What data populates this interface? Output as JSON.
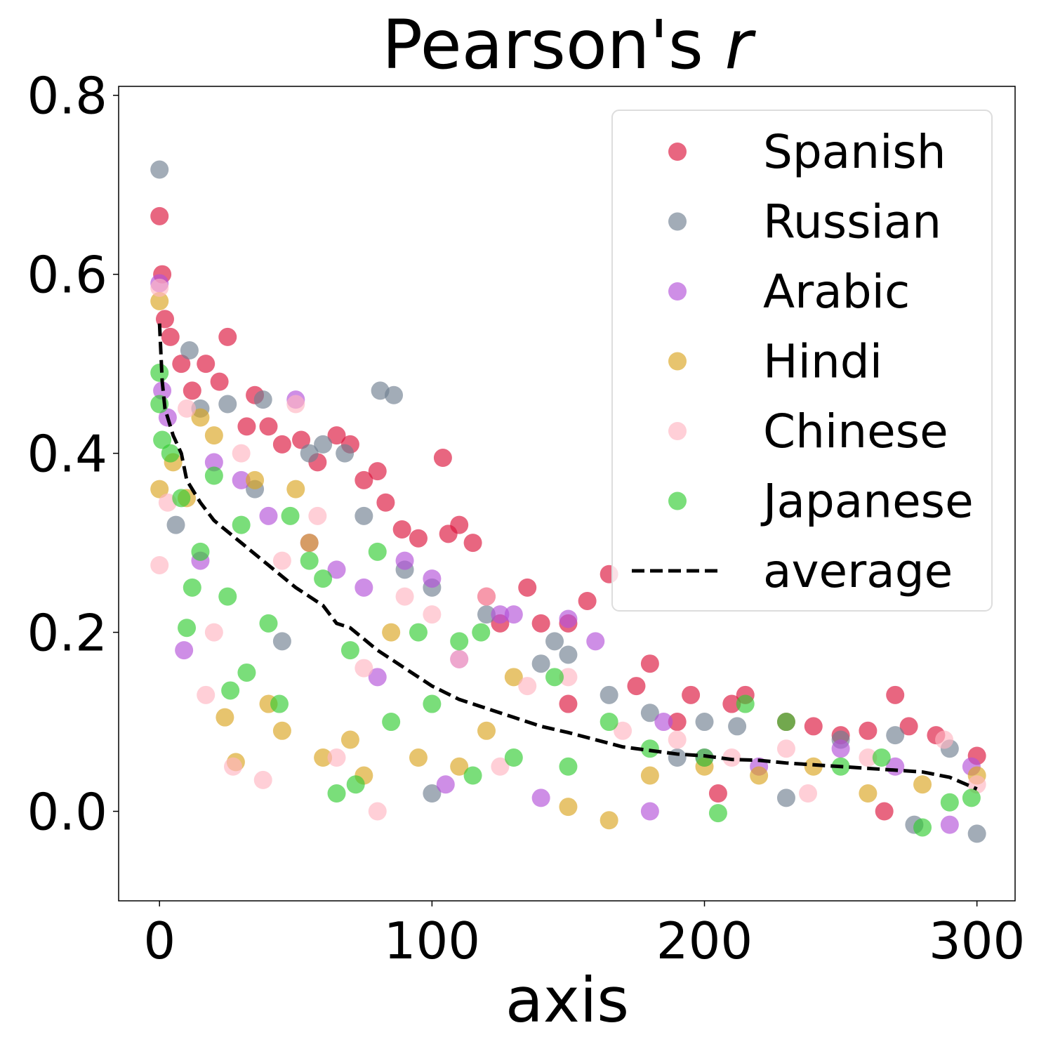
{
  "chart_data": {
    "type": "scatter",
    "title": "Pearson's r",
    "title_prefix": "Pearson's",
    "title_var": "r",
    "xlabel": "axis",
    "ylabel": "",
    "xlim": [
      -15,
      314
    ],
    "ylim": [
      -0.1,
      0.81
    ],
    "xticks": [
      0,
      100,
      200,
      300
    ],
    "xtick_labels": [
      "0",
      "100",
      "200",
      "300"
    ],
    "yticks": [
      0.0,
      0.2,
      0.4,
      0.6,
      0.8
    ],
    "ytick_labels": [
      "0.0",
      "0.2",
      "0.4",
      "0.6",
      "0.8"
    ],
    "grid": false,
    "legend_placement": "top-right",
    "series": [
      {
        "name": "Spanish",
        "color": "#dc143c",
        "points": [
          [
            0,
            0.665
          ],
          [
            1,
            0.6
          ],
          [
            2,
            0.55
          ],
          [
            4,
            0.53
          ],
          [
            8,
            0.5
          ],
          [
            12,
            0.47
          ],
          [
            17,
            0.5
          ],
          [
            22,
            0.48
          ],
          [
            25,
            0.53
          ],
          [
            32,
            0.43
          ],
          [
            35,
            0.465
          ],
          [
            40,
            0.43
          ],
          [
            45,
            0.41
          ],
          [
            52,
            0.415
          ],
          [
            58,
            0.39
          ],
          [
            65,
            0.42
          ],
          [
            70,
            0.41
          ],
          [
            75,
            0.37
          ],
          [
            80,
            0.38
          ],
          [
            83,
            0.345
          ],
          [
            89,
            0.315
          ],
          [
            95,
            0.305
          ],
          [
            104,
            0.395
          ],
          [
            106,
            0.31
          ],
          [
            110,
            0.32
          ],
          [
            115,
            0.3
          ],
          [
            120,
            0.24
          ],
          [
            125,
            0.21
          ],
          [
            135,
            0.25
          ],
          [
            140,
            0.21
          ],
          [
            150,
            0.21
          ],
          [
            157,
            0.235
          ],
          [
            165,
            0.265
          ],
          [
            175,
            0.14
          ],
          [
            180,
            0.165
          ],
          [
            195,
            0.13
          ],
          [
            210,
            0.12
          ],
          [
            215,
            0.13
          ],
          [
            230,
            0.1
          ],
          [
            240,
            0.095
          ],
          [
            250,
            0.085
          ],
          [
            260,
            0.09
          ],
          [
            270,
            0.13
          ],
          [
            275,
            0.095
          ],
          [
            285,
            0.085
          ],
          [
            300,
            0.062
          ],
          [
            205,
            0.02
          ],
          [
            266,
            0.0
          ],
          [
            150,
            0.12
          ],
          [
            190,
            0.1
          ]
        ]
      },
      {
        "name": "Russian",
        "color": "#708090",
        "points": [
          [
            0,
            0.717
          ],
          [
            11,
            0.515
          ],
          [
            15,
            0.45
          ],
          [
            25,
            0.455
          ],
          [
            35,
            0.36
          ],
          [
            38,
            0.46
          ],
          [
            55,
            0.4
          ],
          [
            60,
            0.41
          ],
          [
            68,
            0.4
          ],
          [
            75,
            0.33
          ],
          [
            81,
            0.47
          ],
          [
            86,
            0.465
          ],
          [
            90,
            0.27
          ],
          [
            100,
            0.25
          ],
          [
            120,
            0.22
          ],
          [
            140,
            0.165
          ],
          [
            145,
            0.19
          ],
          [
            150,
            0.175
          ],
          [
            165,
            0.13
          ],
          [
            180,
            0.11
          ],
          [
            200,
            0.1
          ],
          [
            212,
            0.095
          ],
          [
            230,
            0.015
          ],
          [
            250,
            0.08
          ],
          [
            270,
            0.085
          ],
          [
            277,
            -0.015
          ],
          [
            290,
            0.07
          ],
          [
            300,
            -0.025
          ],
          [
            6,
            0.32
          ],
          [
            45,
            0.19
          ],
          [
            100,
            0.02
          ],
          [
            190,
            0.06
          ]
        ]
      },
      {
        "name": "Arabic",
        "color": "#b452d9",
        "points": [
          [
            0,
            0.59
          ],
          [
            1,
            0.47
          ],
          [
            3,
            0.44
          ],
          [
            9,
            0.18
          ],
          [
            15,
            0.28
          ],
          [
            20,
            0.39
          ],
          [
            30,
            0.37
          ],
          [
            40,
            0.33
          ],
          [
            50,
            0.46
          ],
          [
            55,
            0.3
          ],
          [
            65,
            0.27
          ],
          [
            75,
            0.25
          ],
          [
            90,
            0.28
          ],
          [
            100,
            0.26
          ],
          [
            110,
            0.17
          ],
          [
            125,
            0.22
          ],
          [
            130,
            0.22
          ],
          [
            140,
            0.015
          ],
          [
            150,
            0.215
          ],
          [
            160,
            0.19
          ],
          [
            180,
            0.0
          ],
          [
            185,
            0.1
          ],
          [
            200,
            0.06
          ],
          [
            220,
            0.05
          ],
          [
            250,
            0.07
          ],
          [
            270,
            0.05
          ],
          [
            290,
            -0.015
          ],
          [
            298,
            0.05
          ],
          [
            105,
            0.03
          ],
          [
            80,
            0.15
          ]
        ]
      },
      {
        "name": "Hindi",
        "color": "#daa520",
        "points": [
          [
            0,
            0.57
          ],
          [
            0,
            0.36
          ],
          [
            5,
            0.39
          ],
          [
            10,
            0.35
          ],
          [
            15,
            0.44
          ],
          [
            20,
            0.42
          ],
          [
            24,
            0.105
          ],
          [
            28,
            0.055
          ],
          [
            35,
            0.37
          ],
          [
            40,
            0.12
          ],
          [
            45,
            0.09
          ],
          [
            50,
            0.36
          ],
          [
            55,
            0.3
          ],
          [
            60,
            0.06
          ],
          [
            70,
            0.08
          ],
          [
            75,
            0.04
          ],
          [
            85,
            0.2
          ],
          [
            95,
            0.06
          ],
          [
            110,
            0.05
          ],
          [
            130,
            0.15
          ],
          [
            150,
            0.005
          ],
          [
            165,
            -0.01
          ],
          [
            180,
            0.04
          ],
          [
            200,
            0.05
          ],
          [
            220,
            0.04
          ],
          [
            260,
            0.02
          ],
          [
            280,
            0.03
          ],
          [
            300,
            0.04
          ],
          [
            120,
            0.09
          ],
          [
            240,
            0.05
          ]
        ]
      },
      {
        "name": "Chinese",
        "color": "#ffb6c1",
        "points": [
          [
            0,
            0.585
          ],
          [
            0,
            0.275
          ],
          [
            3,
            0.345
          ],
          [
            10,
            0.45
          ],
          [
            17,
            0.13
          ],
          [
            20,
            0.2
          ],
          [
            27,
            0.05
          ],
          [
            30,
            0.4
          ],
          [
            38,
            0.035
          ],
          [
            45,
            0.28
          ],
          [
            50,
            0.455
          ],
          [
            58,
            0.33
          ],
          [
            65,
            0.06
          ],
          [
            75,
            0.16
          ],
          [
            80,
            0.0
          ],
          [
            90,
            0.24
          ],
          [
            100,
            0.22
          ],
          [
            110,
            0.17
          ],
          [
            120,
            0.24
          ],
          [
            135,
            0.14
          ],
          [
            150,
            0.15
          ],
          [
            170,
            0.09
          ],
          [
            190,
            0.08
          ],
          [
            210,
            0.06
          ],
          [
            238,
            0.02
          ],
          [
            260,
            0.06
          ],
          [
            288,
            0.08
          ],
          [
            300,
            0.03
          ],
          [
            125,
            0.05
          ],
          [
            230,
            0.07
          ]
        ]
      },
      {
        "name": "Japanese",
        "color": "#32cd32",
        "points": [
          [
            0,
            0.455
          ],
          [
            0,
            0.49
          ],
          [
            1,
            0.415
          ],
          [
            4,
            0.4
          ],
          [
            8,
            0.35
          ],
          [
            10,
            0.205
          ],
          [
            12,
            0.25
          ],
          [
            15,
            0.29
          ],
          [
            20,
            0.375
          ],
          [
            25,
            0.24
          ],
          [
            26,
            0.135
          ],
          [
            30,
            0.32
          ],
          [
            32,
            0.155
          ],
          [
            40,
            0.21
          ],
          [
            44,
            0.12
          ],
          [
            48,
            0.33
          ],
          [
            55,
            0.28
          ],
          [
            60,
            0.26
          ],
          [
            65,
            0.02
          ],
          [
            70,
            0.18
          ],
          [
            72,
            0.03
          ],
          [
            80,
            0.29
          ],
          [
            85,
            0.1
          ],
          [
            95,
            0.2
          ],
          [
            100,
            0.12
          ],
          [
            110,
            0.19
          ],
          [
            115,
            0.04
          ],
          [
            118,
            0.2
          ],
          [
            130,
            0.06
          ],
          [
            145,
            0.15
          ],
          [
            150,
            0.05
          ],
          [
            165,
            0.1
          ],
          [
            180,
            0.07
          ],
          [
            200,
            0.06
          ],
          [
            205,
            -0.002
          ],
          [
            215,
            0.12
          ],
          [
            230,
            0.1
          ],
          [
            250,
            0.05
          ],
          [
            265,
            0.06
          ],
          [
            280,
            -0.018
          ],
          [
            290,
            0.01
          ],
          [
            298,
            0.015
          ]
        ]
      }
    ],
    "average": {
      "name": "average",
      "color": "#000000",
      "style": "dashed",
      "points": [
        [
          0,
          0.545
        ],
        [
          1,
          0.48
        ],
        [
          2,
          0.45
        ],
        [
          5,
          0.42
        ],
        [
          8,
          0.4
        ],
        [
          10,
          0.37
        ],
        [
          15,
          0.345
        ],
        [
          20,
          0.325
        ],
        [
          30,
          0.3
        ],
        [
          40,
          0.275
        ],
        [
          50,
          0.25
        ],
        [
          60,
          0.23
        ],
        [
          65,
          0.21
        ],
        [
          70,
          0.205
        ],
        [
          80,
          0.18
        ],
        [
          90,
          0.16
        ],
        [
          100,
          0.14
        ],
        [
          110,
          0.125
        ],
        [
          120,
          0.115
        ],
        [
          130,
          0.105
        ],
        [
          140,
          0.095
        ],
        [
          150,
          0.088
        ],
        [
          160,
          0.08
        ],
        [
          170,
          0.072
        ],
        [
          180,
          0.068
        ],
        [
          190,
          0.064
        ],
        [
          200,
          0.062
        ],
        [
          210,
          0.058
        ],
        [
          220,
          0.057
        ],
        [
          230,
          0.054
        ],
        [
          240,
          0.052
        ],
        [
          250,
          0.05
        ],
        [
          260,
          0.048
        ],
        [
          270,
          0.046
        ],
        [
          280,
          0.044
        ],
        [
          290,
          0.038
        ],
        [
          300,
          0.025
        ]
      ]
    }
  }
}
